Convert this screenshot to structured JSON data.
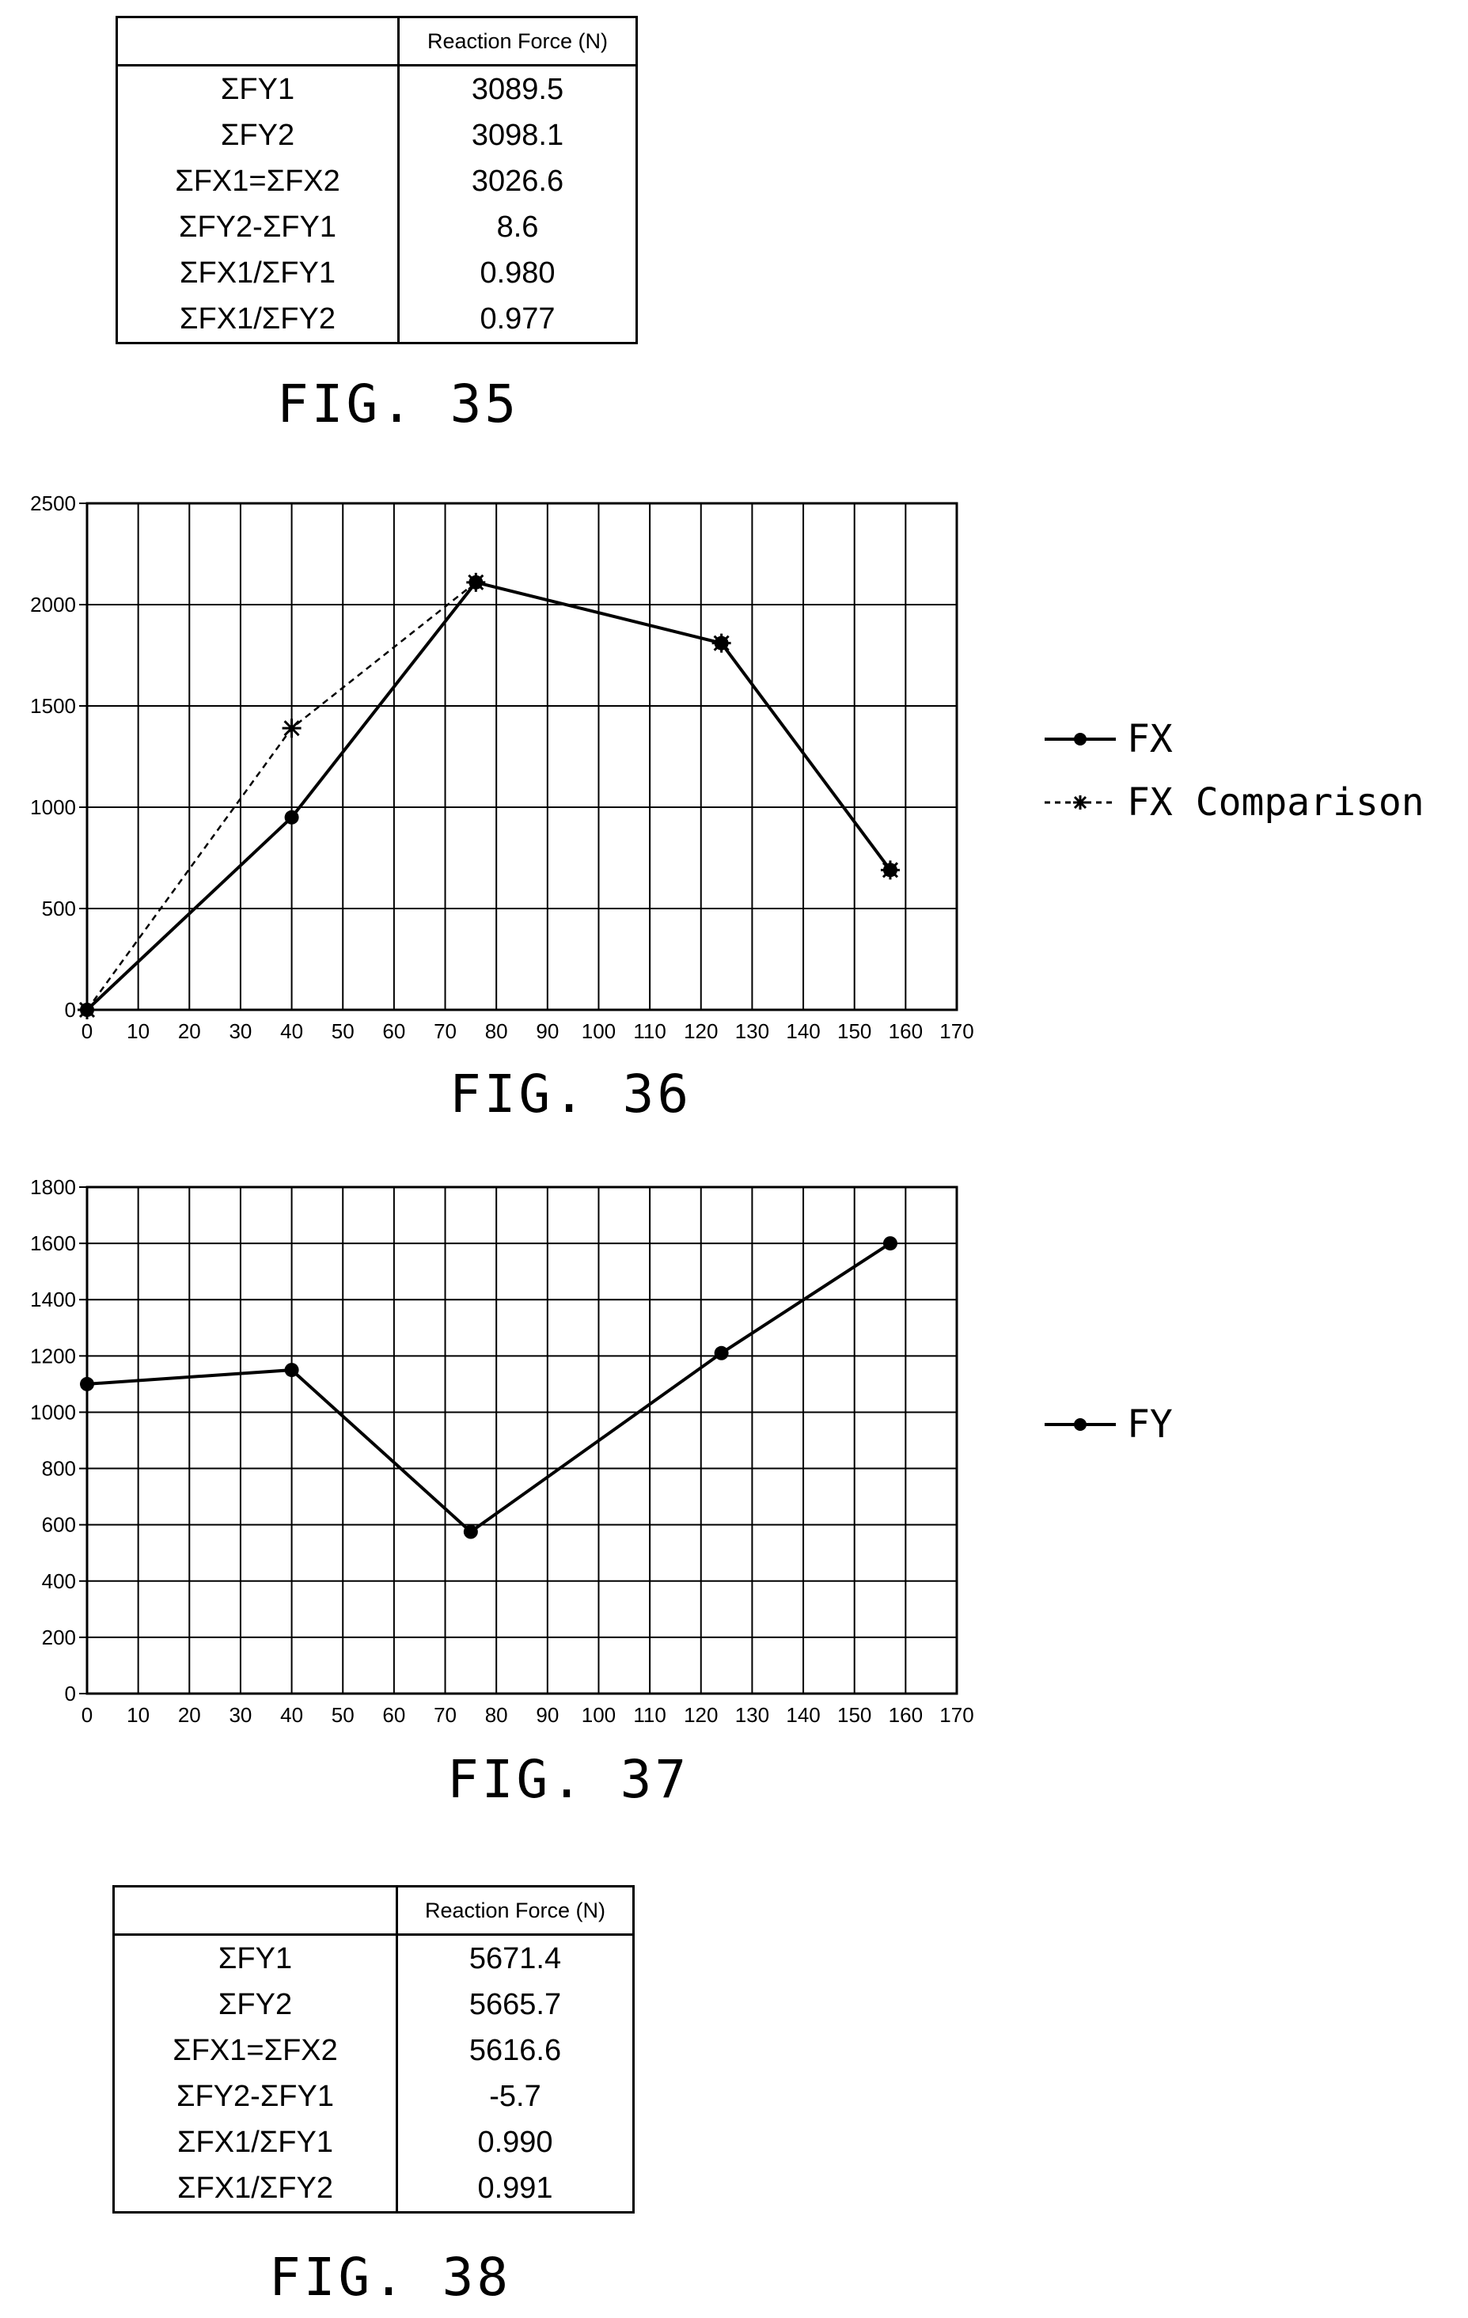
{
  "figures": {
    "fig35": {
      "caption": "FIG. 35",
      "header": [
        "",
        "Reaction Force (N)"
      ],
      "rows": [
        [
          "ΣFY1",
          "3089.5"
        ],
        [
          "ΣFY2",
          "3098.1"
        ],
        [
          "ΣFX1=ΣFX2",
          "3026.6"
        ],
        [
          "ΣFY2-ΣFY1",
          "8.6"
        ],
        [
          "ΣFX1/ΣFY1",
          "0.980"
        ],
        [
          "ΣFX1/ΣFY2",
          "0.977"
        ]
      ]
    },
    "fig36": {
      "caption": "FIG. 36"
    },
    "fig37": {
      "caption": "FIG. 37"
    },
    "fig38": {
      "caption": "FIG. 38",
      "header": [
        "",
        "Reaction Force (N)"
      ],
      "rows": [
        [
          "ΣFY1",
          "5671.4"
        ],
        [
          "ΣFY2",
          "5665.7"
        ],
        [
          "ΣFX1=ΣFX2",
          "5616.6"
        ],
        [
          "ΣFY2-ΣFY1",
          "-5.7"
        ],
        [
          "ΣFX1/ΣFY1",
          "0.990"
        ],
        [
          "ΣFX1/ΣFY2",
          "0.991"
        ]
      ]
    }
  },
  "chart_data": [
    {
      "type": "line",
      "figure": "FIG. 36",
      "xlim": [
        0,
        170
      ],
      "ylim": [
        0,
        2500
      ],
      "x_ticks": [
        0,
        10,
        20,
        30,
        40,
        50,
        60,
        70,
        80,
        90,
        100,
        110,
        120,
        130,
        140,
        150,
        160,
        170
      ],
      "y_ticks": [
        0,
        500,
        1000,
        1500,
        2000,
        2500
      ],
      "grid": true,
      "legend_position": "right",
      "series": [
        {
          "name": "FX",
          "style": "solid",
          "marker": "dot",
          "color": "#000000",
          "points": [
            [
              0,
              0
            ],
            [
              40,
              950
            ],
            [
              76,
              2110
            ],
            [
              124,
              1810
            ],
            [
              157,
              690
            ]
          ]
        },
        {
          "name": "FX Comparison",
          "style": "dashed",
          "marker": "asterisk",
          "color": "#000000",
          "points": [
            [
              0,
              0
            ],
            [
              40,
              1390
            ],
            [
              76,
              2110
            ],
            [
              124,
              1810
            ],
            [
              157,
              690
            ]
          ]
        }
      ]
    },
    {
      "type": "line",
      "figure": "FIG. 37",
      "xlim": [
        0,
        170
      ],
      "ylim": [
        0,
        1800
      ],
      "x_ticks": [
        0,
        10,
        20,
        30,
        40,
        50,
        60,
        70,
        80,
        90,
        100,
        110,
        120,
        130,
        140,
        150,
        160,
        170
      ],
      "y_ticks": [
        0,
        200,
        400,
        600,
        800,
        1000,
        1200,
        1400,
        1600,
        1800
      ],
      "grid": true,
      "legend_position": "right",
      "series": [
        {
          "name": "FY",
          "style": "solid",
          "marker": "dot",
          "color": "#000000",
          "points": [
            [
              0,
              1100
            ],
            [
              40,
              1150
            ],
            [
              75,
              575
            ],
            [
              124,
              1210
            ],
            [
              157,
              1600
            ]
          ]
        }
      ]
    }
  ]
}
